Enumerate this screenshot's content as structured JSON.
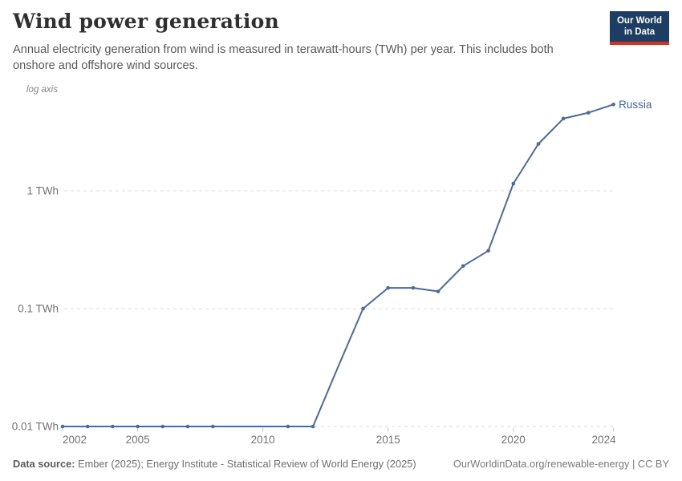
{
  "header": {
    "title": "Wind power generation",
    "subtitle": "Annual electricity generation from wind is measured in terawatt-hours (TWh) per year. This includes both onshore and offshore wind sources.",
    "logo": {
      "line1": "Our World",
      "line2": "in Data",
      "bg_color": "#1d3d63",
      "stripe_color": "#c0392b"
    }
  },
  "chart_data": {
    "type": "line",
    "title": "Wind power generation",
    "axis_note": "log axis",
    "x_axis": {
      "range": [
        2002,
        2024
      ],
      "tick_years": [
        2002,
        2005,
        2010,
        2015,
        2020,
        2024
      ]
    },
    "y_axis": {
      "scale": "log",
      "unit": "TWh",
      "range": [
        0.01,
        6
      ],
      "ticks": [
        {
          "value": 1,
          "label": "1 TWh"
        },
        {
          "value": 0.1,
          "label": "0.1 TWh"
        },
        {
          "value": 0.01,
          "label": "0.01 TWh"
        }
      ]
    },
    "grid": true,
    "legend_position": "end-of-line-label",
    "series": [
      {
        "name": "Russia",
        "color": "#4c6a9c",
        "points": [
          {
            "year": 2002,
            "value": 0.01,
            "marker": true
          },
          {
            "year": 2003,
            "value": 0.01,
            "marker": true
          },
          {
            "year": 2004,
            "value": 0.01,
            "marker": true
          },
          {
            "year": 2005,
            "value": 0.01,
            "marker": true
          },
          {
            "year": 2006,
            "value": 0.01,
            "marker": true
          },
          {
            "year": 2007,
            "value": 0.01,
            "marker": true
          },
          {
            "year": 2008,
            "value": 0.01,
            "marker": true
          },
          {
            "year": 2009,
            "value": 0.01,
            "marker": false
          },
          {
            "year": 2010,
            "value": 0.01,
            "marker": false
          },
          {
            "year": 2011,
            "value": 0.01,
            "marker": true
          },
          {
            "year": 2012,
            "value": 0.01,
            "marker": true
          },
          {
            "year": 2013,
            "value": 0.032,
            "marker": false
          },
          {
            "year": 2014,
            "value": 0.1,
            "marker": true
          },
          {
            "year": 2015,
            "value": 0.15,
            "marker": true
          },
          {
            "year": 2016,
            "value": 0.15,
            "marker": true
          },
          {
            "year": 2017,
            "value": 0.14,
            "marker": true
          },
          {
            "year": 2018,
            "value": 0.23,
            "marker": true
          },
          {
            "year": 2019,
            "value": 0.31,
            "marker": true
          },
          {
            "year": 2020,
            "value": 1.15,
            "marker": true
          },
          {
            "year": 2021,
            "value": 2.5,
            "marker": true
          },
          {
            "year": 2022,
            "value": 4.1,
            "marker": true
          },
          {
            "year": 2023,
            "value": 4.6,
            "marker": true
          },
          {
            "year": 2024,
            "value": 5.4,
            "marker": true
          }
        ]
      }
    ]
  },
  "footer": {
    "source_label": "Data source:",
    "source_text": " Ember (2025); Energy Institute - Statistical Review of World Energy (2025)",
    "right_text": "OurWorldinData.org/renewable-energy | CC BY"
  },
  "colors": {
    "line": "#4c6a9c",
    "entity_label": "#46649b",
    "gridline": "#dcdcdc",
    "tick": "#c9c9c9",
    "axis_text": "#737373",
    "axis_note_text": "#858585"
  }
}
